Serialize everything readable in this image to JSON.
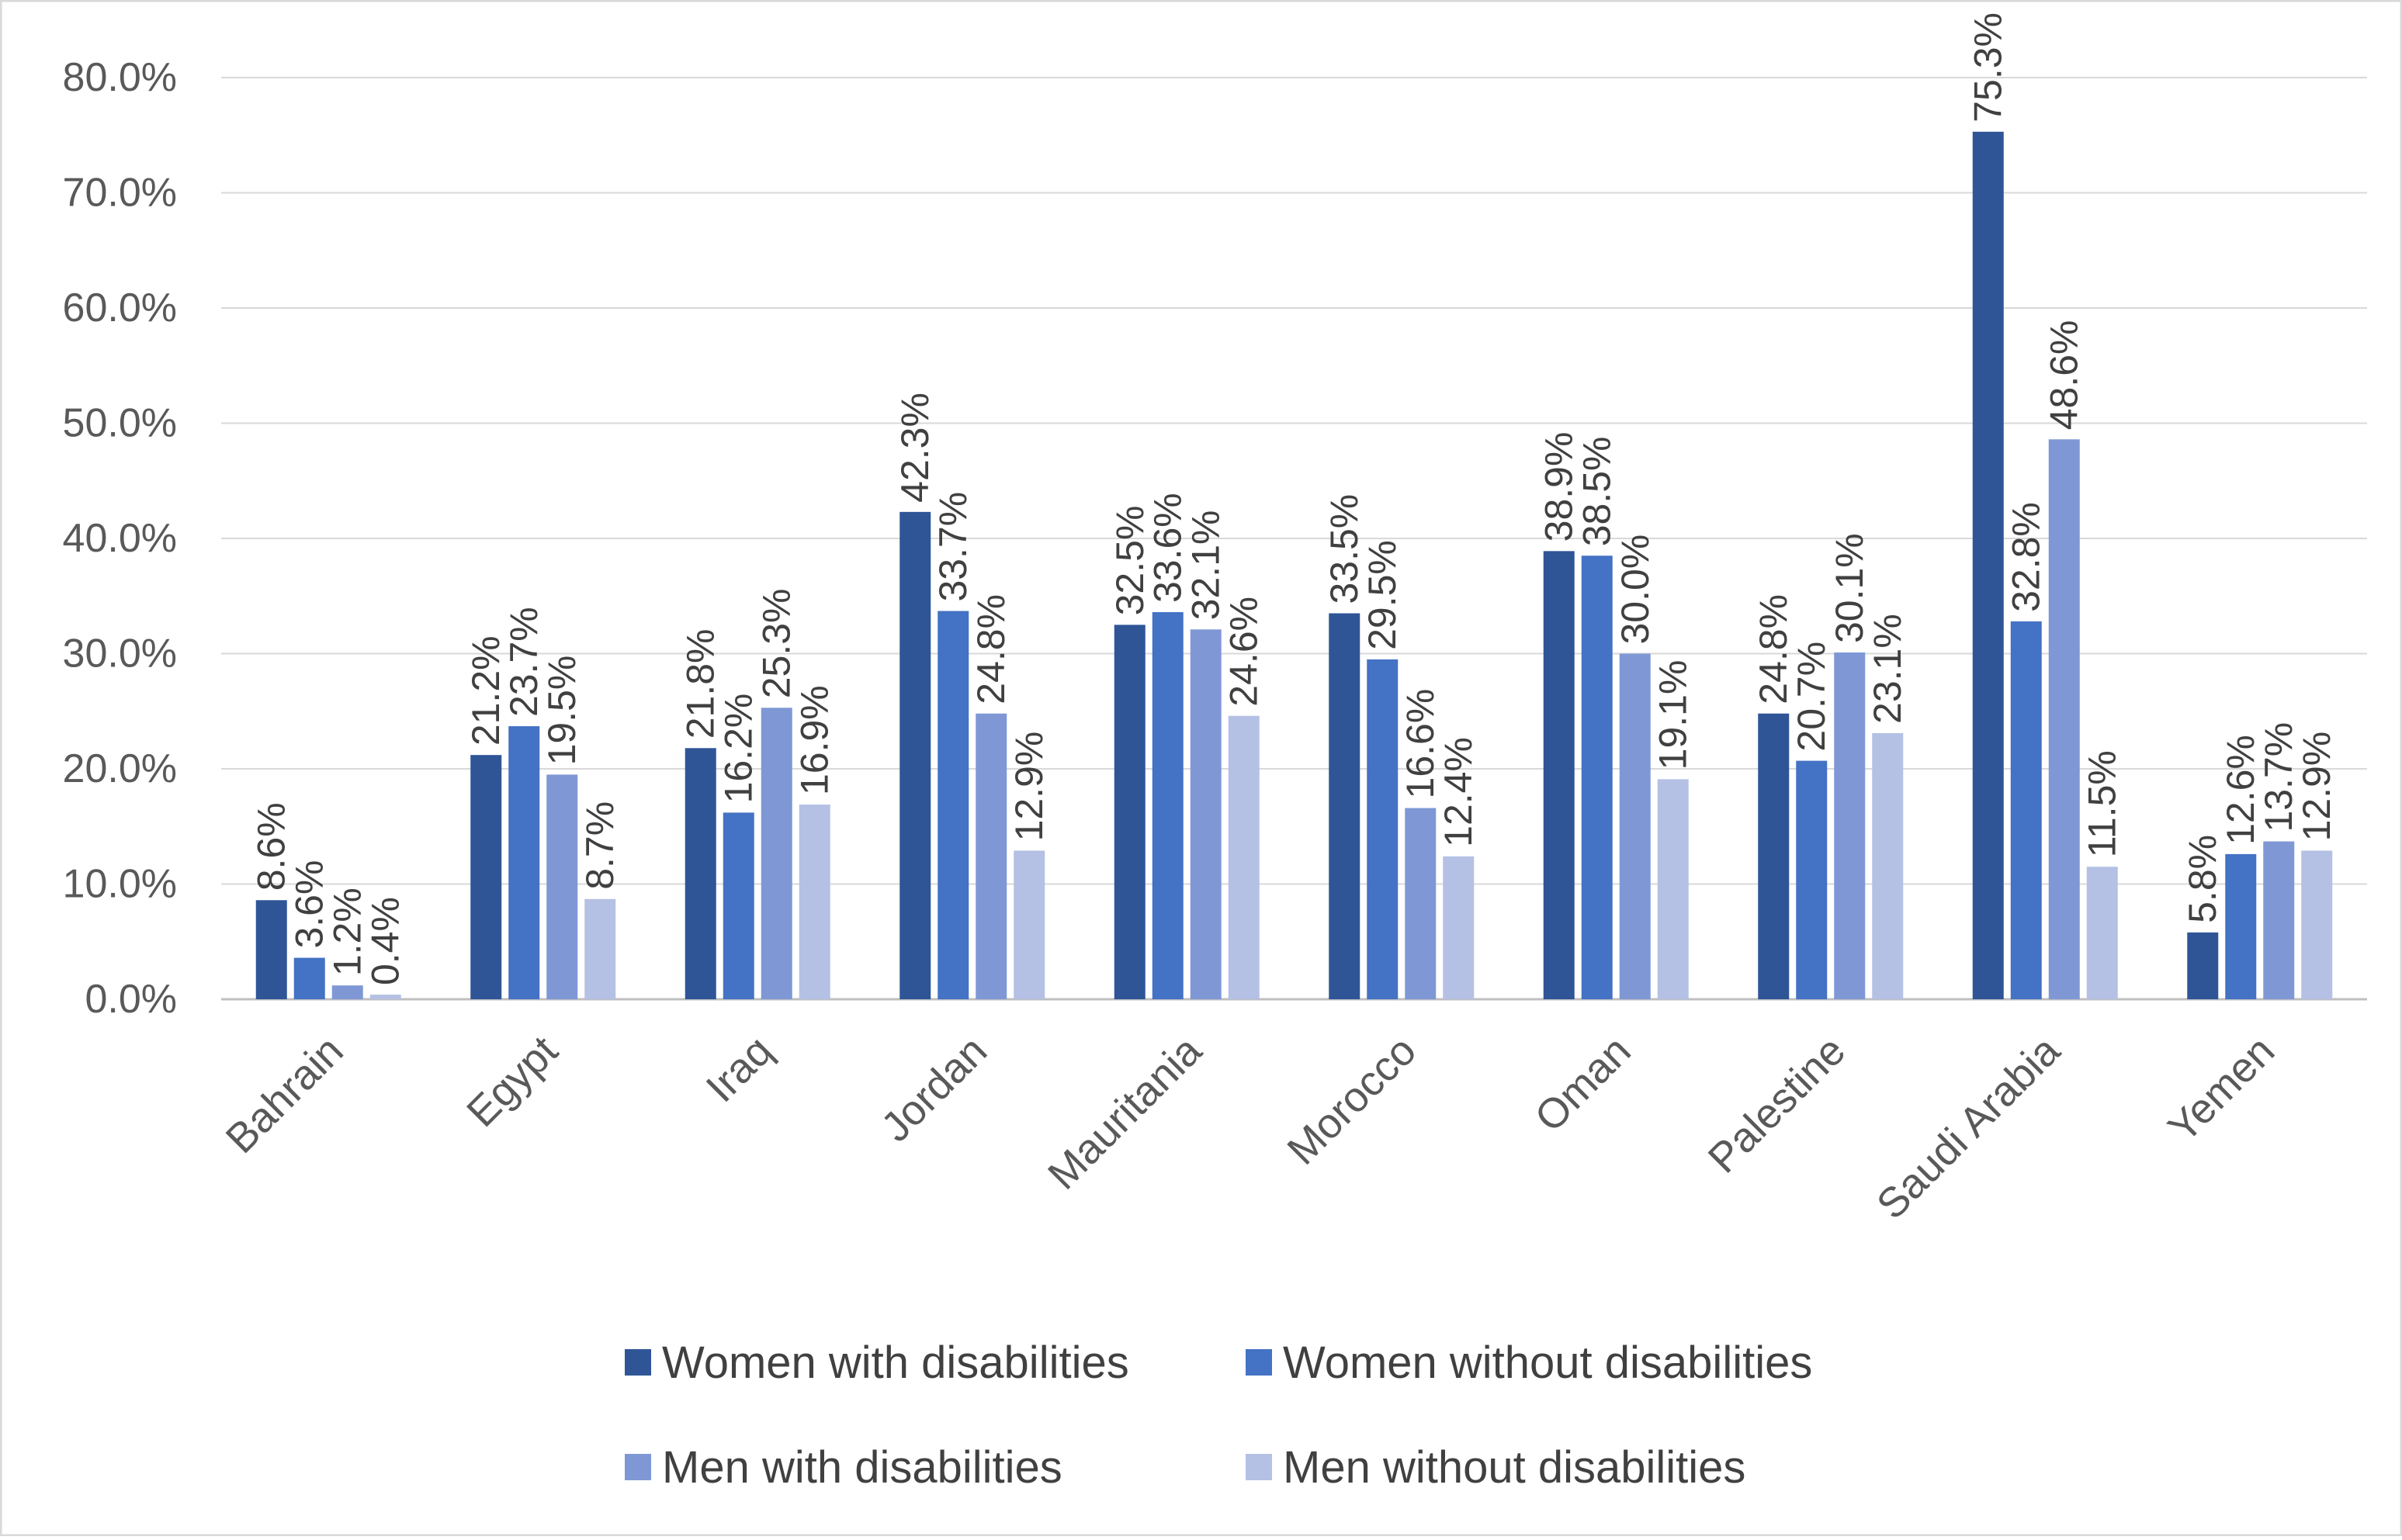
{
  "chart_data": {
    "type": "bar",
    "title": "",
    "xlabel": "",
    "ylabel": "",
    "ylim": [
      0,
      0.8
    ],
    "y_ticks": [
      {
        "value": 0.0,
        "label": "0.0%"
      },
      {
        "value": 0.1,
        "label": "10.0%"
      },
      {
        "value": 0.2,
        "label": "20.0%"
      },
      {
        "value": 0.3,
        "label": "30.0%"
      },
      {
        "value": 0.4,
        "label": "40.0%"
      },
      {
        "value": 0.5,
        "label": "50.0%"
      },
      {
        "value": 0.6,
        "label": "60.0%"
      },
      {
        "value": 0.7,
        "label": "70.0%"
      },
      {
        "value": 0.8,
        "label": "80.0%"
      }
    ],
    "grid": true,
    "legend_position": "bottom",
    "categories": [
      "Bahrain",
      "Egypt",
      "Iraq",
      "Jordan",
      "Mauritania",
      "Morocco",
      "Oman",
      "Palestine",
      "Saudi Arabia",
      "Yemen"
    ],
    "series": [
      {
        "name": "Women with disabilities",
        "color": "#2f5597",
        "values": [
          0.086,
          0.212,
          0.218,
          0.423,
          0.325,
          0.335,
          0.389,
          0.248,
          0.753,
          0.058
        ],
        "labels": [
          "8.6%",
          "21.2%",
          "21.8%",
          "42.3%",
          "32.5%",
          "33.5%",
          "38.9%",
          "24.8%",
          "75.3%",
          "5.8%"
        ]
      },
      {
        "name": "Women without disabilities",
        "color": "#4472c4",
        "values": [
          0.036,
          0.237,
          0.162,
          0.337,
          0.336,
          0.295,
          0.385,
          0.207,
          0.328,
          0.126
        ],
        "labels": [
          "3.6%",
          "23.7%",
          "16.2%",
          "33.7%",
          "33.6%",
          "29.5%",
          "38.5%",
          "20.7%",
          "32.8%",
          "12.6%"
        ]
      },
      {
        "name": "Men with disabilities",
        "color": "#7f98d5",
        "values": [
          0.012,
          0.195,
          0.253,
          0.248,
          0.321,
          0.166,
          0.3,
          0.301,
          0.486,
          0.137
        ],
        "labels": [
          "1.2%",
          "19.5%",
          "25.3%",
          "24.8%",
          "32.1%",
          "16.6%",
          "30.0%",
          "30.1%",
          "48.6%",
          "13.7%"
        ]
      },
      {
        "name": "Men without disabilities",
        "color": "#b4c1e4",
        "values": [
          0.004,
          0.087,
          0.169,
          0.129,
          0.246,
          0.124,
          0.191,
          0.231,
          0.115,
          0.129
        ],
        "labels": [
          "0.4%",
          "8.7%",
          "16.9%",
          "12.9%",
          "24.6%",
          "12.4%",
          "19.1%",
          "23.1%",
          "11.5%",
          "12.9%"
        ]
      }
    ]
  }
}
